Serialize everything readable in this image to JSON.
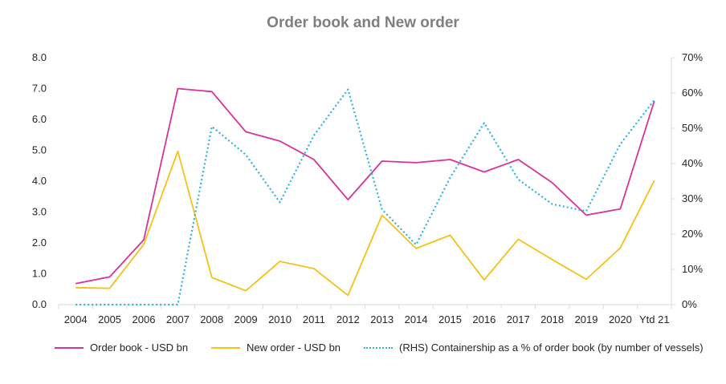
{
  "chart_data": {
    "type": "line",
    "title": "Order book and New order",
    "categories": [
      "2004",
      "2005",
      "2006",
      "2007",
      "2008",
      "2009",
      "2010",
      "2011",
      "2012",
      "2013",
      "2014",
      "2015",
      "2016",
      "2017",
      "2018",
      "2019",
      "2020",
      "Ytd 21"
    ],
    "ylim": [
      0,
      8
    ],
    "y_ticks": [
      "0.0",
      "1.0",
      "2.0",
      "3.0",
      "4.0",
      "5.0",
      "6.0",
      "7.0",
      "8.0"
    ],
    "y2lim": [
      0,
      70
    ],
    "y2_ticks": [
      "0%",
      "10%",
      "20%",
      "30%",
      "40%",
      "50%",
      "60%",
      "70%"
    ],
    "grid": false,
    "legend_position": "bottom",
    "series": [
      {
        "name": "Order book - USD bn",
        "axis": "left",
        "color": "#d6339b",
        "style": "solid",
        "values": [
          0.68,
          0.9,
          2.1,
          7.0,
          6.9,
          5.6,
          5.3,
          4.7,
          3.4,
          4.65,
          4.6,
          4.7,
          4.3,
          4.7,
          3.95,
          2.9,
          3.1,
          6.6
        ]
      },
      {
        "name": "New order - USD bn",
        "axis": "left",
        "color": "#f5c118",
        "style": "solid",
        "values": [
          0.55,
          0.53,
          1.95,
          4.97,
          0.88,
          0.45,
          1.4,
          1.17,
          0.3,
          2.9,
          1.82,
          2.25,
          0.8,
          2.12,
          1.46,
          0.82,
          1.84,
          4.02
        ]
      },
      {
        "name": "(RHS) Containership as a % of order book (by number of vessels)",
        "axis": "right",
        "color": "#29b5dd",
        "style": "dotted",
        "values": [
          0,
          0,
          0,
          0,
          50.5,
          42.5,
          29,
          48,
          61,
          27,
          17,
          36,
          51.5,
          35.5,
          28.5,
          26.5,
          45.5,
          58
        ]
      }
    ]
  }
}
